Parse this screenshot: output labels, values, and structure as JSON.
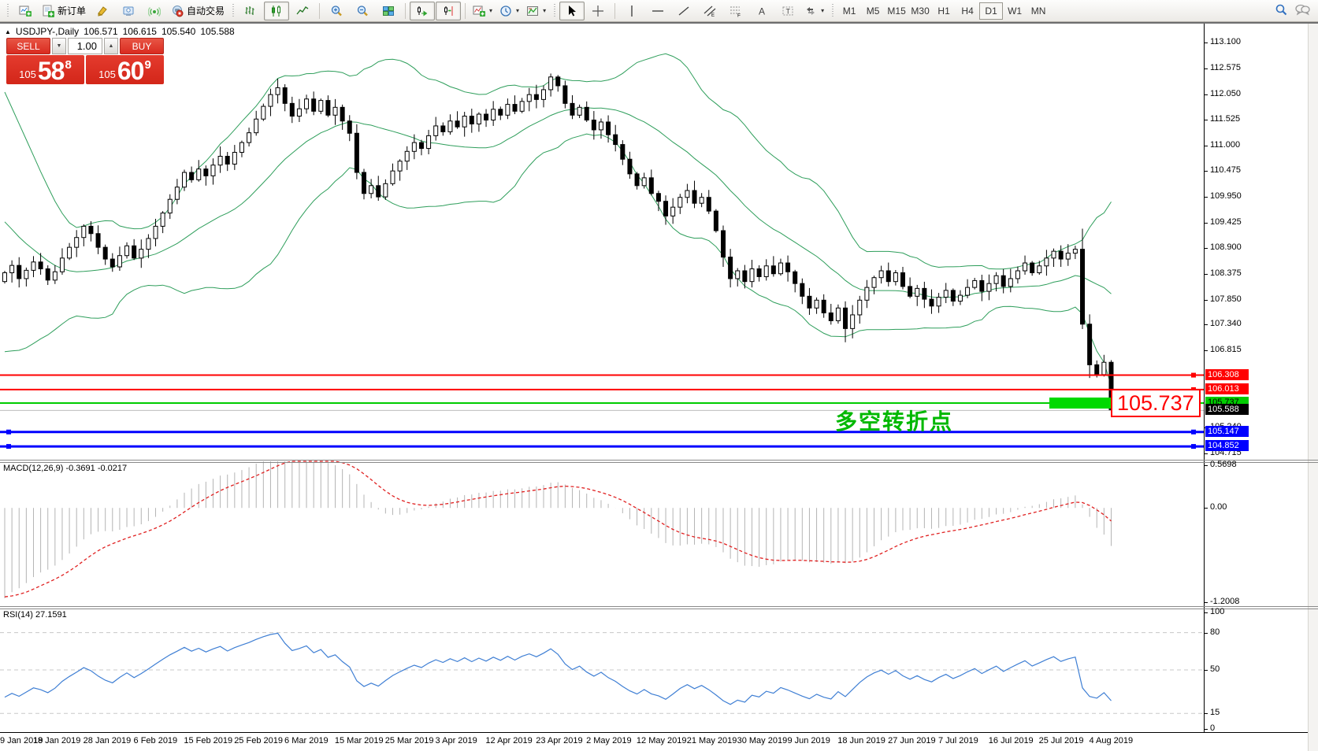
{
  "toolbar": {
    "new_order_label": "新订单",
    "auto_trading_label": "自动交易",
    "timeframes": [
      "M1",
      "M5",
      "M15",
      "M30",
      "H1",
      "H4",
      "D1",
      "W1",
      "MN"
    ],
    "active_timeframe": "D1"
  },
  "trade_panel": {
    "sell_label": "SELL",
    "buy_label": "BUY",
    "volume": "1.00",
    "sell_prefix": "105",
    "sell_big": "58",
    "sell_sup": "8",
    "buy_prefix": "105",
    "buy_big": "60",
    "buy_sup": "9"
  },
  "chart_header": {
    "symbol": "USDJPY-,Daily",
    "open": "106.571",
    "high": "106.615",
    "low": "105.540",
    "close": "105.588"
  },
  "price_axis_ticks": [
    113.1,
    112.575,
    112.05,
    111.525,
    111.0,
    110.475,
    109.95,
    109.425,
    108.9,
    108.375,
    107.85,
    107.34,
    106.815,
    105.24,
    104.715
  ],
  "date_axis": {
    "labels": [
      "9 Jan 2019",
      "18 Jan 2019",
      "28 Jan 2019",
      "6 Feb 2019",
      "15 Feb 2019",
      "25 Feb 2019",
      "6 Mar 2019",
      "15 Mar 2019",
      "25 Mar 2019",
      "3 Apr 2019",
      "12 Apr 2019",
      "23 Apr 2019",
      "2 May 2019",
      "12 May 2019",
      "21 May 2019",
      "30 May 2019",
      "9 Jun 2019",
      "18 Jun 2019",
      "27 Jun 2019",
      "7 Jul 2019",
      "16 Jul 2019",
      "25 Jul 2019",
      "4 Aug 2019"
    ],
    "step": 7
  },
  "hlines": [
    {
      "price": 106.308,
      "color": "#ff0000",
      "width": 2,
      "label_bg": "#ff0000",
      "label_fg": "#ffffff",
      "handles": "right"
    },
    {
      "price": 106.013,
      "color": "#ff0000",
      "width": 2,
      "label_bg": "#ff0000",
      "label_fg": "#ffffff",
      "handles": "right"
    },
    {
      "price": 105.737,
      "color": "#00cc00",
      "width": 2,
      "label_bg": "#00cc00",
      "label_fg": "#000000",
      "handles": "none"
    },
    {
      "price": 105.147,
      "color": "#0000ff",
      "width": 3,
      "label_bg": "#0000ff",
      "label_fg": "#ffffff",
      "handles": "both"
    },
    {
      "price": 104.852,
      "color": "#0000ff",
      "width": 3,
      "label_bg": "#0000ff",
      "label_fg": "#ffffff",
      "handles": "both"
    }
  ],
  "current_price": {
    "value": 105.588,
    "line_color": "#bdbdbd",
    "label_bg": "#000000",
    "label_fg": "#ffffff"
  },
  "annotation_text": "多空转折点",
  "big_price_label": "105.737",
  "indicators": {
    "macd": {
      "label": "MACD(12,26,9)",
      "value_main": "-0.3691",
      "value_signal": "-0.0217",
      "axis_max": "0.5698",
      "axis_zero": "0.00",
      "axis_min": "-1.2008",
      "fast": 12,
      "slow": 26,
      "signal": 9
    },
    "rsi": {
      "label": "RSI(14)",
      "value": "27.1591",
      "period": 14,
      "axis": [
        "100",
        "80",
        "50",
        "15",
        "0"
      ],
      "levels": [
        80,
        50,
        15
      ]
    }
  },
  "chart_data": {
    "type": "candlestick",
    "symbol": "USDJPY",
    "timeframe": "Daily",
    "bollinger": {
      "period": 20,
      "deviation": 2
    },
    "pre_closes": [
      113.4,
      113.52,
      113.3,
      113.18,
      113.02,
      112.84,
      112.92,
      112.7,
      112.52,
      112.6,
      112.38,
      112.2,
      112.3,
      112.08,
      111.9,
      111.78,
      111.6,
      111.42,
      111.2,
      111.0,
      110.8,
      110.52,
      110.3,
      110.02,
      109.8,
      109.52,
      109.22,
      108.92,
      108.6,
      108.3,
      107.9,
      107.3,
      107.7,
      108.05,
      108.22
    ],
    "closes": [
      108.4,
      108.55,
      108.28,
      108.45,
      108.62,
      108.48,
      108.25,
      108.42,
      108.7,
      108.92,
      109.12,
      109.35,
      109.2,
      108.92,
      108.68,
      108.52,
      108.75,
      108.95,
      108.7,
      108.88,
      109.1,
      109.35,
      109.62,
      109.9,
      110.15,
      110.45,
      110.3,
      110.52,
      110.38,
      110.6,
      110.78,
      110.62,
      110.86,
      111.06,
      111.26,
      111.54,
      111.8,
      112.04,
      112.18,
      111.86,
      111.6,
      111.75,
      111.95,
      111.7,
      111.92,
      111.62,
      111.78,
      111.5,
      111.25,
      110.45,
      110.02,
      110.18,
      109.95,
      110.22,
      110.48,
      110.68,
      110.88,
      111.06,
      110.94,
      111.2,
      111.4,
      111.28,
      111.5,
      111.38,
      111.6,
      111.44,
      111.64,
      111.52,
      111.74,
      111.62,
      111.84,
      111.7,
      111.9,
      112.04,
      111.94,
      112.14,
      112.4,
      112.22,
      111.86,
      111.62,
      111.78,
      111.52,
      111.32,
      111.48,
      111.22,
      111.02,
      110.72,
      110.42,
      110.18,
      110.34,
      110.02,
      109.86,
      109.56,
      109.74,
      109.94,
      110.08,
      109.82,
      109.94,
      109.66,
      109.26,
      108.72,
      108.28,
      108.44,
      108.22,
      108.48,
      108.32,
      108.54,
      108.38,
      108.6,
      108.42,
      108.18,
      107.92,
      107.68,
      107.84,
      107.58,
      107.42,
      107.68,
      107.26,
      107.54,
      107.84,
      108.1,
      108.3,
      108.44,
      108.22,
      108.4,
      108.12,
      107.92,
      108.08,
      107.86,
      107.72,
      107.9,
      108.04,
      107.82,
      107.94,
      108.1,
      108.24,
      108.02,
      108.18,
      108.34,
      108.12,
      108.28,
      108.44,
      108.6,
      108.4,
      108.54,
      108.7,
      108.84,
      108.68,
      108.8,
      108.88,
      107.35,
      106.52,
      106.32,
      106.571,
      105.588
    ],
    "overrides": {
      "76": {
        "h": 112.47
      },
      "117": {
        "l": 106.98
      },
      "150": {
        "h": 109.3
      },
      "151": {
        "l": 106.25
      },
      "154": {
        "o": 106.571,
        "h": 106.615,
        "l": 105.54,
        "c": 105.588
      }
    },
    "price_range_visible": [
      104.58,
      113.49
    ]
  }
}
